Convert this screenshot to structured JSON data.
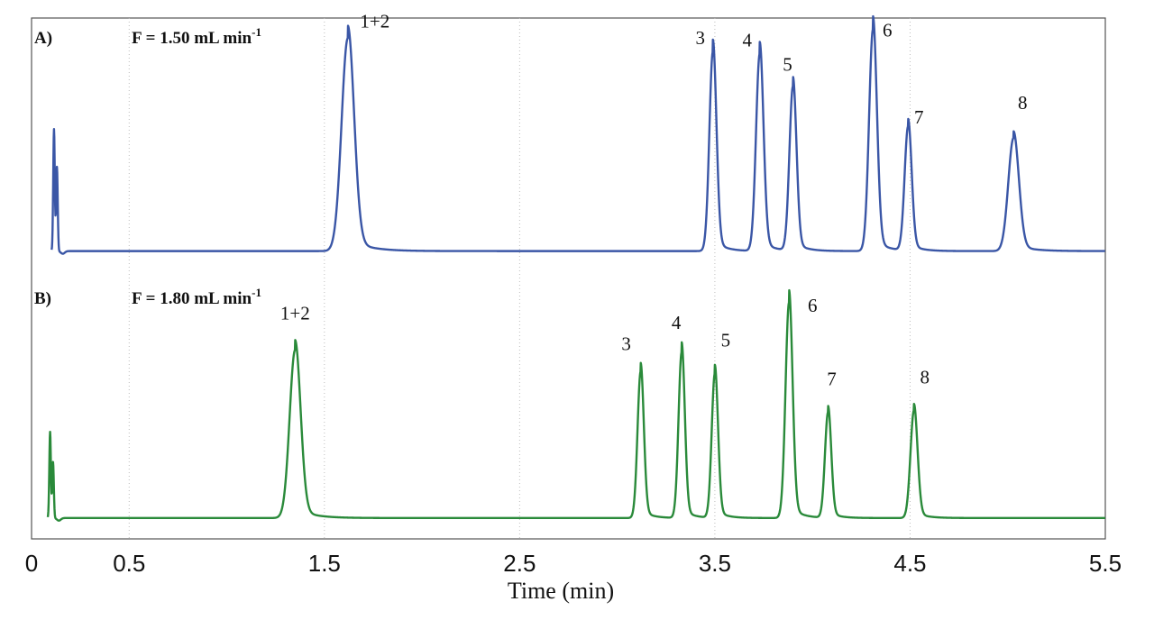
{
  "chart_data": {
    "type": "line",
    "xlabel": "Time (min)",
    "xlim": [
      0,
      5.5
    ],
    "x_ticks": [
      0,
      0.5,
      1.5,
      2.5,
      3.5,
      4.5,
      5.5
    ],
    "x_tick_labels": [
      "0",
      "0.5",
      "1.5",
      "2.5",
      "3.5",
      "4.5",
      "5.5"
    ],
    "gridlines": "vertical dotted",
    "panels": [
      {
        "panel_label": "A)",
        "condition": "F = 1.50 mL min",
        "condition_sup": "-1",
        "color": "#3a56a6",
        "baseline": 0.03,
        "injection_peaks": [
          {
            "time": 0.115,
            "height": 0.55,
            "width": 0.004
          },
          {
            "time": 0.13,
            "height": 0.38,
            "width": 0.004
          }
        ],
        "peaks": [
          {
            "label": "1+2",
            "time": 1.62,
            "height": 0.96,
            "width": 0.032
          },
          {
            "label": "3",
            "time": 3.49,
            "height": 0.9,
            "width": 0.018
          },
          {
            "label": "4",
            "time": 3.73,
            "height": 0.89,
            "width": 0.019
          },
          {
            "label": "5",
            "time": 3.9,
            "height": 0.74,
            "width": 0.018
          },
          {
            "label": "6",
            "time": 4.31,
            "height": 1.0,
            "width": 0.02
          },
          {
            "label": "7",
            "time": 4.49,
            "height": 0.56,
            "width": 0.018
          },
          {
            "label": "8",
            "time": 5.03,
            "height": 0.51,
            "width": 0.027
          }
        ]
      },
      {
        "panel_label": "B)",
        "condition": "F = 1.80 mL min",
        "condition_sup": "-1",
        "color": "#2a8a3a",
        "baseline": 0.03,
        "injection_peaks": [
          {
            "time": 0.095,
            "height": 0.4,
            "width": 0.004
          },
          {
            "time": 0.11,
            "height": 0.26,
            "width": 0.004
          }
        ],
        "peaks": [
          {
            "label": "1+2",
            "time": 1.35,
            "height": 0.78,
            "width": 0.028
          },
          {
            "label": "3",
            "time": 3.12,
            "height": 0.68,
            "width": 0.016
          },
          {
            "label": "4",
            "time": 3.33,
            "height": 0.77,
            "width": 0.016
          },
          {
            "label": "5",
            "time": 3.5,
            "height": 0.67,
            "width": 0.016
          },
          {
            "label": "6",
            "time": 3.88,
            "height": 1.0,
            "width": 0.018
          },
          {
            "label": "7",
            "time": 4.08,
            "height": 0.49,
            "width": 0.016
          },
          {
            "label": "8",
            "time": 4.52,
            "height": 0.5,
            "width": 0.018
          }
        ]
      }
    ]
  }
}
